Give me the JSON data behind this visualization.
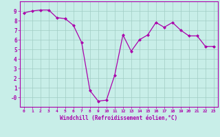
{
  "x": [
    0,
    1,
    2,
    3,
    4,
    5,
    6,
    7,
    8,
    9,
    10,
    11,
    12,
    13,
    14,
    15,
    16,
    17,
    18,
    19,
    20,
    21,
    22,
    23
  ],
  "y": [
    8.8,
    9.0,
    9.1,
    9.1,
    8.3,
    8.2,
    7.5,
    5.7,
    0.7,
    -0.4,
    -0.3,
    2.3,
    6.5,
    4.8,
    6.0,
    6.5,
    7.8,
    7.3,
    7.8,
    7.0,
    6.4,
    6.4,
    5.3,
    5.3
  ],
  "line_color": "#AA00AA",
  "marker": "D",
  "marker_size": 2,
  "bg_color": "#C8EEE8",
  "grid_color": "#A0CCC4",
  "xlabel": "Windchill (Refroidissement éolien,°C)",
  "xlabel_color": "#AA00AA",
  "tick_color": "#AA00AA",
  "ylim": [
    -1,
    10
  ],
  "xlim": [
    -0.5,
    23.5
  ],
  "yticks": [
    0,
    1,
    2,
    3,
    4,
    5,
    6,
    7,
    8,
    9
  ],
  "xticks": [
    0,
    1,
    2,
    3,
    4,
    5,
    6,
    7,
    8,
    9,
    10,
    11,
    12,
    13,
    14,
    15,
    16,
    17,
    18,
    19,
    20,
    21,
    22,
    23
  ],
  "xtick_labels": [
    "0",
    "1",
    "2",
    "3",
    "4",
    "5",
    "6",
    "7",
    "8",
    "9",
    "10",
    "11",
    "12",
    "13",
    "14",
    "15",
    "16",
    "17",
    "18",
    "19",
    "20",
    "21",
    "22",
    "23"
  ],
  "ytick_labels": [
    "-0",
    "1",
    "2",
    "3",
    "4",
    "5",
    "6",
    "7",
    "8",
    "9"
  ]
}
